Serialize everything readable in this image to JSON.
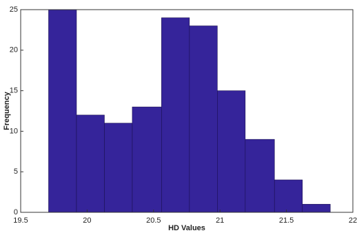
{
  "chart_data": {
    "type": "histogram",
    "xlabel": "HD Values",
    "ylabel": "Frequency",
    "bins": [
      19.71,
      19.92,
      20.13,
      20.34,
      20.56,
      20.77,
      20.98,
      21.19,
      21.41,
      21.62,
      21.83
    ],
    "values": [
      25,
      12,
      11,
      13,
      24,
      23,
      15,
      9,
      4,
      1
    ],
    "color": "#35249a",
    "xlim": [
      19.5,
      22
    ],
    "xticks": [
      19.5,
      20,
      20.5,
      21,
      21.5,
      22
    ],
    "ylim": [
      0,
      25
    ],
    "yticks": [
      0,
      5,
      10,
      15,
      20,
      25
    ]
  }
}
